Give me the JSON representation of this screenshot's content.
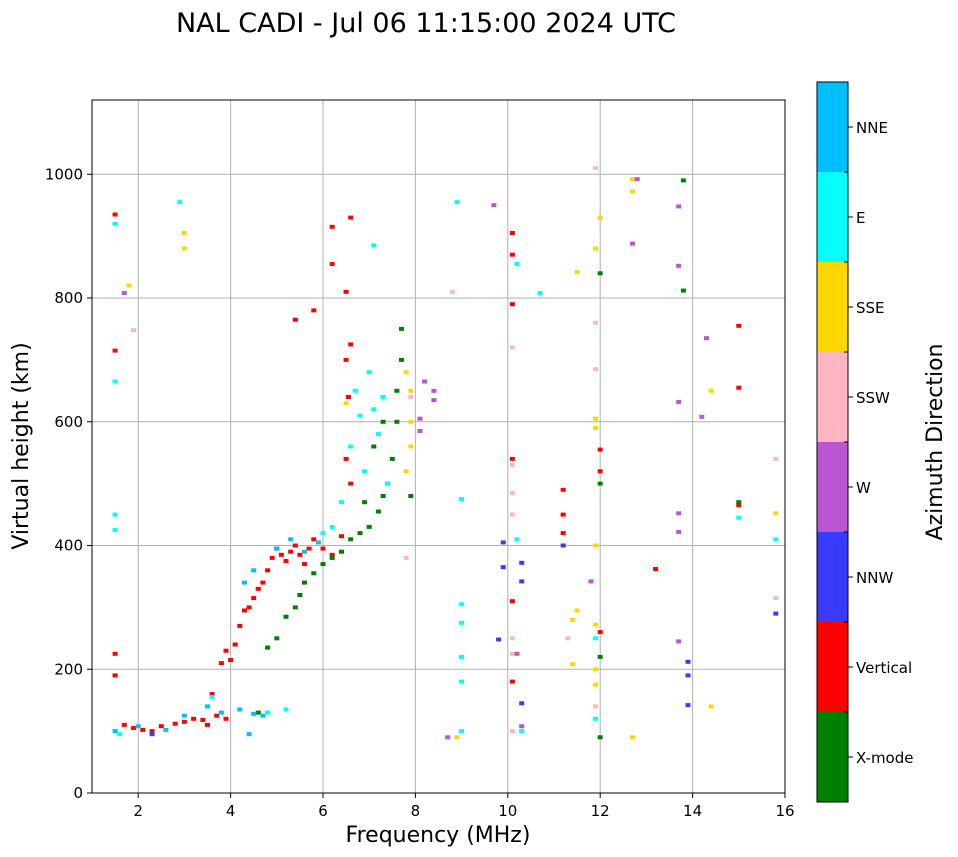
{
  "chart_data": {
    "type": "scatter",
    "title": "NAL CADI - Jul 06 11:15:00 2024 UTC",
    "xlabel": "Frequency (MHz)",
    "ylabel": "Virtual height (km)",
    "xlim": [
      1,
      16
    ],
    "ylim": [
      0,
      1120
    ],
    "xticks": [
      2,
      4,
      6,
      8,
      10,
      12,
      14,
      16
    ],
    "yticks": [
      0,
      200,
      400,
      600,
      800,
      1000
    ],
    "grid": true,
    "colorbar": {
      "label": "Azimuth Direction",
      "categories": [
        {
          "name": "NNE",
          "color": "#00bfff"
        },
        {
          "name": "E",
          "color": "#00ffff"
        },
        {
          "name": "SSE",
          "color": "#ffd700"
        },
        {
          "name": "SSW",
          "color": "#ffb6c1"
        },
        {
          "name": "W",
          "color": "#ba55d3"
        },
        {
          "name": "NNW",
          "color": "#3a3aff"
        },
        {
          "name": "Vertical",
          "color": "#ff0000"
        },
        {
          "name": "X-mode",
          "color": "#008000"
        }
      ]
    },
    "series": [
      {
        "name": "Vertical",
        "points": [
          [
            1.5,
            935
          ],
          [
            1.5,
            715
          ],
          [
            1.5,
            225
          ],
          [
            1.5,
            190
          ],
          [
            1.7,
            110
          ],
          [
            1.9,
            105
          ],
          [
            2.1,
            102
          ],
          [
            2.3,
            100
          ],
          [
            2.5,
            108
          ],
          [
            2.8,
            112
          ],
          [
            3.0,
            115
          ],
          [
            3.2,
            120
          ],
          [
            3.4,
            118
          ],
          [
            3.5,
            110
          ],
          [
            3.7,
            125
          ],
          [
            3.9,
            120
          ],
          [
            3.6,
            160
          ],
          [
            3.8,
            210
          ],
          [
            3.9,
            230
          ],
          [
            4.0,
            215
          ],
          [
            4.1,
            240
          ],
          [
            4.2,
            270
          ],
          [
            4.3,
            295
          ],
          [
            4.4,
            300
          ],
          [
            4.5,
            315
          ],
          [
            4.6,
            330
          ],
          [
            4.7,
            340
          ],
          [
            4.8,
            360
          ],
          [
            4.9,
            380
          ],
          [
            5.0,
            395
          ],
          [
            5.1,
            385
          ],
          [
            5.2,
            375
          ],
          [
            5.3,
            390
          ],
          [
            5.4,
            400
          ],
          [
            5.5,
            385
          ],
          [
            5.6,
            370
          ],
          [
            5.7,
            395
          ],
          [
            5.8,
            410
          ],
          [
            6.0,
            395
          ],
          [
            6.2,
            385
          ],
          [
            6.4,
            415
          ],
          [
            6.5,
            700
          ],
          [
            6.55,
            640
          ],
          [
            6.6,
            725
          ],
          [
            6.6,
            930
          ],
          [
            6.5,
            810
          ],
          [
            6.2,
            915
          ],
          [
            6.2,
            855
          ],
          [
            5.8,
            780
          ],
          [
            5.4,
            765
          ],
          [
            6.5,
            540
          ],
          [
            6.6,
            500
          ],
          [
            10.1,
            905
          ],
          [
            10.1,
            870
          ],
          [
            10.1,
            790
          ],
          [
            10.1,
            540
          ],
          [
            10.1,
            310
          ],
          [
            10.1,
            180
          ],
          [
            11.2,
            490
          ],
          [
            11.2,
            450
          ],
          [
            11.2,
            420
          ],
          [
            12.0,
            555
          ],
          [
            12.0,
            520
          ],
          [
            12.0,
            260
          ],
          [
            15.0,
            755
          ],
          [
            15.0,
            655
          ],
          [
            15.0,
            465
          ],
          [
            13.2,
            362
          ]
        ]
      },
      {
        "name": "X-mode",
        "points": [
          [
            4.6,
            130
          ],
          [
            4.8,
            235
          ],
          [
            5.0,
            250
          ],
          [
            5.2,
            285
          ],
          [
            5.4,
            300
          ],
          [
            5.5,
            320
          ],
          [
            5.6,
            340
          ],
          [
            5.8,
            355
          ],
          [
            6.0,
            370
          ],
          [
            6.2,
            380
          ],
          [
            6.4,
            390
          ],
          [
            6.6,
            410
          ],
          [
            6.8,
            420
          ],
          [
            7.0,
            430
          ],
          [
            7.2,
            455
          ],
          [
            7.3,
            480
          ],
          [
            7.4,
            500
          ],
          [
            7.5,
            540
          ],
          [
            7.6,
            600
          ],
          [
            7.6,
            650
          ],
          [
            7.7,
            700
          ],
          [
            7.7,
            750
          ],
          [
            6.9,
            470
          ],
          [
            7.1,
            560
          ],
          [
            7.3,
            600
          ],
          [
            12.0,
            840
          ],
          [
            12.0,
            500
          ],
          [
            12.0,
            220
          ],
          [
            12.0,
            90
          ],
          [
            13.8,
            990
          ],
          [
            13.8,
            812
          ],
          [
            15.0,
            470
          ],
          [
            7.9,
            480
          ]
        ]
      },
      {
        "name": "E",
        "points": [
          [
            1.5,
            920
          ],
          [
            1.5,
            665
          ],
          [
            1.5,
            450
          ],
          [
            1.5,
            425
          ],
          [
            1.6,
            95
          ],
          [
            2.9,
            955
          ],
          [
            3.6,
            155
          ],
          [
            4.8,
            130
          ],
          [
            5.2,
            135
          ],
          [
            6.0,
            420
          ],
          [
            6.2,
            430
          ],
          [
            6.4,
            470
          ],
          [
            6.6,
            560
          ],
          [
            6.7,
            650
          ],
          [
            6.8,
            610
          ],
          [
            6.9,
            520
          ],
          [
            7.0,
            680
          ],
          [
            7.1,
            620
          ],
          [
            7.2,
            580
          ],
          [
            7.3,
            640
          ],
          [
            7.4,
            500
          ],
          [
            7.1,
            885
          ],
          [
            8.9,
            955
          ],
          [
            9.0,
            475
          ],
          [
            9.0,
            305
          ],
          [
            9.0,
            275
          ],
          [
            9.0,
            220
          ],
          [
            9.0,
            180
          ],
          [
            9.0,
            100
          ],
          [
            10.2,
            855
          ],
          [
            10.2,
            410
          ],
          [
            10.7,
            808
          ],
          [
            10.3,
            100
          ],
          [
            11.9,
            250
          ],
          [
            11.9,
            120
          ],
          [
            15.0,
            445
          ],
          [
            15.8,
            410
          ]
        ]
      },
      {
        "name": "NNE",
        "points": [
          [
            1.5,
            100
          ],
          [
            2.0,
            108
          ],
          [
            2.6,
            102
          ],
          [
            3.0,
            125
          ],
          [
            3.5,
            140
          ],
          [
            3.8,
            130
          ],
          [
            4.2,
            135
          ],
          [
            4.5,
            128
          ],
          [
            4.7,
            125
          ],
          [
            4.3,
            340
          ],
          [
            4.5,
            360
          ],
          [
            5.0,
            395
          ],
          [
            5.3,
            410
          ],
          [
            5.6,
            390
          ],
          [
            5.9,
            405
          ],
          [
            4.4,
            95
          ]
        ]
      },
      {
        "name": "SSE",
        "points": [
          [
            1.8,
            820
          ],
          [
            3.0,
            905
          ],
          [
            3.0,
            880
          ],
          [
            6.5,
            630
          ],
          [
            7.8,
            680
          ],
          [
            7.9,
            650
          ],
          [
            7.9,
            600
          ],
          [
            7.9,
            560
          ],
          [
            7.8,
            520
          ],
          [
            12.0,
            930
          ],
          [
            11.9,
            880
          ],
          [
            11.5,
            842
          ],
          [
            11.9,
            605
          ],
          [
            11.9,
            590
          ],
          [
            11.5,
            295
          ],
          [
            11.9,
            272
          ],
          [
            11.9,
            200
          ],
          [
            11.9,
            175
          ],
          [
            11.4,
            280
          ],
          [
            11.4,
            208
          ],
          [
            12.7,
            992
          ],
          [
            12.7,
            972
          ],
          [
            12.7,
            90
          ],
          [
            14.4,
            650
          ],
          [
            14.4,
            140
          ],
          [
            15.8,
            452
          ],
          [
            8.9,
            90
          ],
          [
            11.9,
            400
          ]
        ]
      },
      {
        "name": "SSW",
        "points": [
          [
            1.9,
            748
          ],
          [
            7.9,
            640
          ],
          [
            8.8,
            810
          ],
          [
            10.1,
            720
          ],
          [
            10.1,
            530
          ],
          [
            10.1,
            485
          ],
          [
            10.1,
            450
          ],
          [
            10.1,
            250
          ],
          [
            10.1,
            225
          ],
          [
            10.1,
            100
          ],
          [
            11.9,
            1010
          ],
          [
            11.9,
            760
          ],
          [
            11.9,
            685
          ],
          [
            11.3,
            250
          ],
          [
            11.9,
            140
          ],
          [
            15.8,
            540
          ],
          [
            15.8,
            315
          ],
          [
            7.8,
            380
          ]
        ]
      },
      {
        "name": "W",
        "points": [
          [
            1.7,
            808
          ],
          [
            8.2,
            665
          ],
          [
            8.4,
            650
          ],
          [
            8.4,
            635
          ],
          [
            8.1,
            585
          ],
          [
            8.1,
            605
          ],
          [
            9.7,
            950
          ],
          [
            12.7,
            888
          ],
          [
            12.8,
            992
          ],
          [
            13.7,
            948
          ],
          [
            13.7,
            852
          ],
          [
            13.7,
            632
          ],
          [
            13.7,
            452
          ],
          [
            13.7,
            422
          ],
          [
            13.7,
            245
          ],
          [
            14.3,
            735
          ],
          [
            14.2,
            608
          ],
          [
            10.3,
            108
          ],
          [
            10.2,
            225
          ],
          [
            11.8,
            342
          ],
          [
            8.7,
            90
          ]
        ]
      },
      {
        "name": "NNW",
        "points": [
          [
            9.9,
            405
          ],
          [
            9.9,
            365
          ],
          [
            10.3,
            372
          ],
          [
            10.3,
            342
          ],
          [
            10.3,
            145
          ],
          [
            11.2,
            400
          ],
          [
            13.9,
            212
          ],
          [
            13.9,
            190
          ],
          [
            13.9,
            142
          ],
          [
            15.8,
            290
          ],
          [
            9.8,
            248
          ],
          [
            2.3,
            95
          ]
        ]
      }
    ]
  }
}
